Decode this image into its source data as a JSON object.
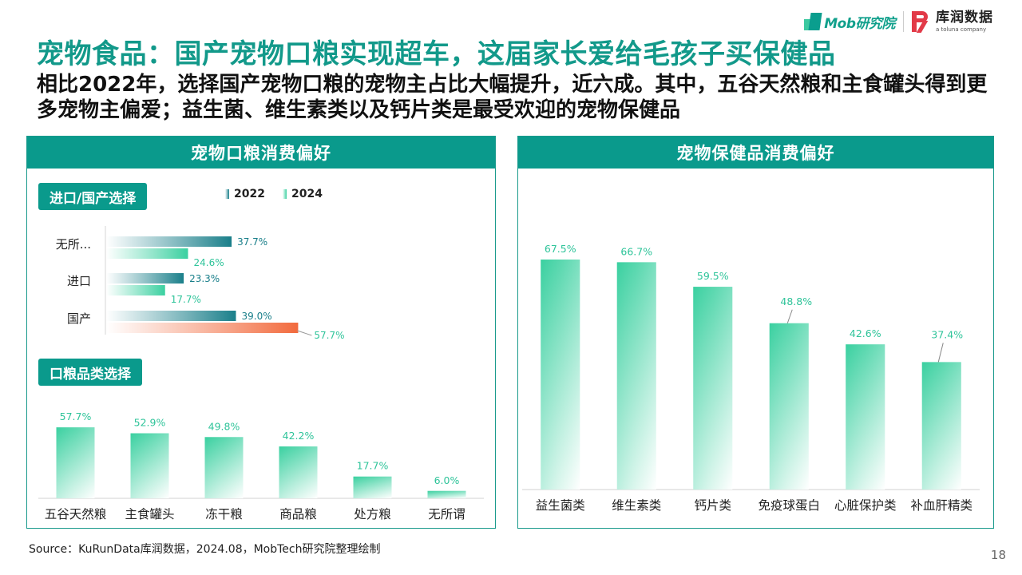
{
  "brand": {
    "mob": "Mob研究院",
    "kurun": "库润数据",
    "kurun_sub": "a toluna company"
  },
  "headline": "宠物食品：国产宠物口粮实现超车，这届家长爱给毛孩子买保健品",
  "subhead": "相比2022年，选择国产宠物口粮的宠物主占比大幅提升，近六成。其中，五谷天然粮和主食罐头得到更多宠物主偏爱；益生菌、维生素类以及钙片类是最受欢迎的宠物保健品",
  "left_panel": {
    "title": "宠物口粮消费偏好",
    "tag_origin": "进口/国产选择",
    "tag_category": "口粮品类选择"
  },
  "right_panel": {
    "title": "宠物保健品消费偏好"
  },
  "source": "Source：KuRunData库润数据，2024.08，MobTech研究院整理绘制",
  "page_number": "18",
  "colors": {
    "teal": "#0a9a8c",
    "bar2022": "#1a7f8a",
    "bar2024": "#3ad0a0",
    "highlight": "#f26a3d",
    "label2024": "#2fc49a"
  },
  "chart_data": [
    {
      "type": "bar",
      "orientation": "horizontal",
      "categories": [
        "无所...",
        "进口",
        "国产"
      ],
      "series": [
        {
          "name": "2022",
          "values": [
            37.7,
            23.3,
            39.0
          ],
          "labels": [
            "37.7%",
            "23.3%",
            "39.0%"
          ]
        },
        {
          "name": "2024",
          "values": [
            24.6,
            17.7,
            57.7
          ],
          "labels": [
            "24.6%",
            "17.7%",
            "57.7%"
          ]
        }
      ],
      "highlight": {
        "series": "2024",
        "category": "国产"
      },
      "xlim": [
        0,
        60
      ],
      "legend": "top"
    },
    {
      "type": "bar",
      "categories": [
        "五谷天然粮",
        "主食罐头",
        "冻干粮",
        "商品粮",
        "处方粮",
        "无所谓"
      ],
      "values": [
        57.7,
        52.9,
        49.8,
        42.2,
        17.7,
        6.0
      ],
      "labels": [
        "57.7%",
        "52.9%",
        "49.8%",
        "42.2%",
        "17.7%",
        "6.0%"
      ],
      "ylim": [
        0,
        60
      ]
    },
    {
      "type": "bar",
      "categories": [
        "益生菌类",
        "维生素类",
        "钙片类",
        "免疫球蛋白",
        "心脏保护类",
        "补血肝精类"
      ],
      "values": [
        67.5,
        66.7,
        59.5,
        48.8,
        42.6,
        37.4
      ],
      "labels": [
        "67.5%",
        "66.7%",
        "59.5%",
        "48.8%",
        "42.6%",
        "37.4%"
      ],
      "ylim": [
        0,
        70
      ]
    }
  ]
}
